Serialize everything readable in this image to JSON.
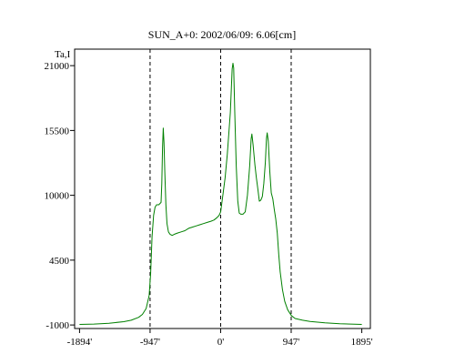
{
  "chart_data": {
    "type": "line",
    "title": "SUN_A+0: 2002/06/09: 6.06[cm]",
    "ylabel": "Ta,I",
    "xlabel": "",
    "xlim": [
      -1960,
      2010
    ],
    "ylim": [
      -1300,
      22400
    ],
    "x_ticks": [
      -1894,
      -947,
      0,
      947,
      1895
    ],
    "x_tick_labels": [
      "-1894'",
      "-947'",
      "0'",
      "947'",
      "1895'"
    ],
    "y_ticks": [
      -1000,
      4500,
      10000,
      15500,
      21000
    ],
    "y_tick_labels": [
      "-1000",
      "4500",
      "10000",
      "15500",
      "21000"
    ],
    "vlines": [
      -947,
      0,
      947
    ],
    "vline_style": "dashed",
    "grid": false,
    "line_color": "#008000",
    "series": [
      {
        "values": [
          [
            -1894,
            -950
          ],
          [
            -1700,
            -920
          ],
          [
            -1500,
            -850
          ],
          [
            -1300,
            -720
          ],
          [
            -1200,
            -600
          ],
          [
            -1100,
            -350
          ],
          [
            -1050,
            -100
          ],
          [
            -1000,
            400
          ],
          [
            -960,
            1500
          ],
          [
            -940,
            3300
          ],
          [
            -920,
            6500
          ],
          [
            -900,
            8300
          ],
          [
            -880,
            9000
          ],
          [
            -860,
            9200
          ],
          [
            -830,
            9200
          ],
          [
            -800,
            9400
          ],
          [
            -790,
            11000
          ],
          [
            -780,
            14000
          ],
          [
            -770,
            15700
          ],
          [
            -760,
            14500
          ],
          [
            -750,
            12000
          ],
          [
            -735,
            9200
          ],
          [
            -720,
            7600
          ],
          [
            -700,
            6900
          ],
          [
            -680,
            6700
          ],
          [
            -650,
            6600
          ],
          [
            -620,
            6700
          ],
          [
            -580,
            6800
          ],
          [
            -530,
            6900
          ],
          [
            -480,
            7000
          ],
          [
            -430,
            7200
          ],
          [
            -380,
            7300
          ],
          [
            -330,
            7400
          ],
          [
            -280,
            7500
          ],
          [
            -230,
            7600
          ],
          [
            -180,
            7700
          ],
          [
            -130,
            7800
          ],
          [
            -90,
            7900
          ],
          [
            -50,
            8100
          ],
          [
            -20,
            8300
          ],
          [
            0,
            8600
          ],
          [
            30,
            10000
          ],
          [
            60,
            11500
          ],
          [
            90,
            13500
          ],
          [
            110,
            15300
          ],
          [
            130,
            17000
          ],
          [
            145,
            19200
          ],
          [
            155,
            20700
          ],
          [
            165,
            21200
          ],
          [
            175,
            20800
          ],
          [
            190,
            17000
          ],
          [
            210,
            12500
          ],
          [
            230,
            9500
          ],
          [
            250,
            8500
          ],
          [
            270,
            8400
          ],
          [
            300,
            8400
          ],
          [
            330,
            8600
          ],
          [
            360,
            10000
          ],
          [
            390,
            12500
          ],
          [
            410,
            14800
          ],
          [
            420,
            15200
          ],
          [
            435,
            14300
          ],
          [
            460,
            12600
          ],
          [
            480,
            11500
          ],
          [
            500,
            10500
          ],
          [
            520,
            9500
          ],
          [
            540,
            9600
          ],
          [
            560,
            9900
          ],
          [
            580,
            11000
          ],
          [
            600,
            12800
          ],
          [
            615,
            14800
          ],
          [
            625,
            15300
          ],
          [
            640,
            14600
          ],
          [
            660,
            12000
          ],
          [
            680,
            10200
          ],
          [
            700,
            9700
          ],
          [
            720,
            8800
          ],
          [
            740,
            8000
          ],
          [
            760,
            6800
          ],
          [
            780,
            5000
          ],
          [
            800,
            3500
          ],
          [
            830,
            2000
          ],
          [
            860,
            1000
          ],
          [
            900,
            300
          ],
          [
            950,
            -200
          ],
          [
            1000,
            -450
          ],
          [
            1100,
            -600
          ],
          [
            1200,
            -700
          ],
          [
            1400,
            -820
          ],
          [
            1600,
            -900
          ],
          [
            1895,
            -950
          ]
        ]
      }
    ]
  }
}
